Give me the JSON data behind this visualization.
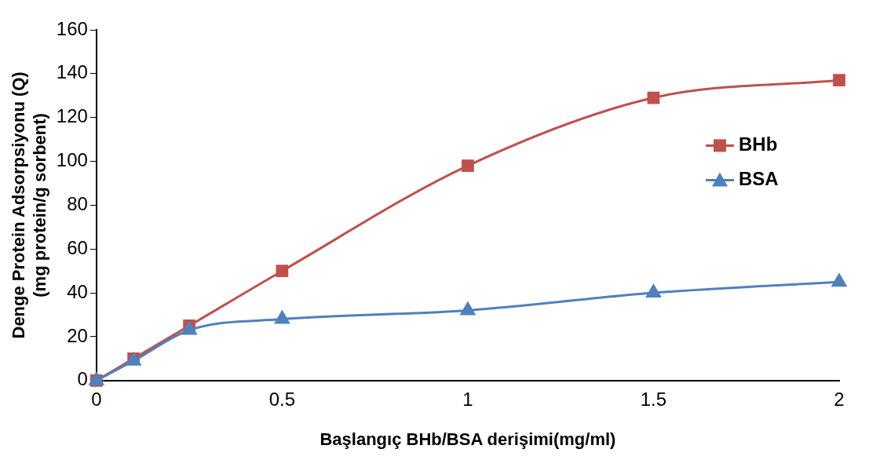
{
  "chart_data": {
    "type": "line",
    "xlabel": "Başlangıç BHb/BSA derişimi(mg/ml)",
    "ylabel": "Denge Protein Adsorpsiyonu (Q)\n(mg protein/g sorbent)",
    "x": [
      0,
      0.1,
      0.25,
      0.5,
      1,
      1.5,
      2
    ],
    "series": [
      {
        "name": "BHb",
        "color": "#c0504d",
        "marker": "square",
        "values": [
          0,
          10,
          25,
          50,
          98,
          129,
          137
        ]
      },
      {
        "name": "BSA",
        "color": "#4f81bd",
        "marker": "triangle",
        "values": [
          0,
          9,
          23,
          28,
          32,
          40,
          45
        ]
      }
    ],
    "xlim": [
      0,
      2
    ],
    "xticks": [
      0,
      0.5,
      1,
      1.5,
      2
    ],
    "ylim": [
      0,
      160
    ],
    "yticks": [
      0,
      20,
      40,
      60,
      80,
      100,
      120,
      140,
      160
    ],
    "grid": false,
    "legend": "right",
    "line_style": "solid"
  }
}
